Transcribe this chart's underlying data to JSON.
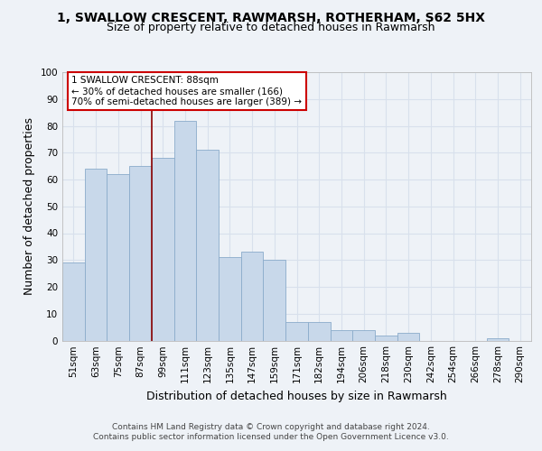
{
  "title": "1, SWALLOW CRESCENT, RAWMARSH, ROTHERHAM, S62 5HX",
  "subtitle": "Size of property relative to detached houses in Rawmarsh",
  "xlabel": "Distribution of detached houses by size in Rawmarsh",
  "ylabel": "Number of detached properties",
  "bar_color": "#c8d8ea",
  "bar_edge_color": "#8aabca",
  "categories": [
    "51sqm",
    "63sqm",
    "75sqm",
    "87sqm",
    "99sqm",
    "111sqm",
    "123sqm",
    "135sqm",
    "147sqm",
    "159sqm",
    "171sqm",
    "182sqm",
    "194sqm",
    "206sqm",
    "218sqm",
    "230sqm",
    "242sqm",
    "254sqm",
    "266sqm",
    "278sqm",
    "290sqm"
  ],
  "values": [
    29,
    64,
    62,
    65,
    68,
    82,
    71,
    31,
    33,
    30,
    7,
    7,
    4,
    4,
    2,
    3,
    0,
    0,
    0,
    1,
    0
  ],
  "ylim": [
    0,
    100
  ],
  "yticks": [
    0,
    10,
    20,
    30,
    40,
    50,
    60,
    70,
    80,
    90,
    100
  ],
  "property_label": "1 SWALLOW CRESCENT: 88sqm",
  "annotation_line1": "← 30% of detached houses are smaller (166)",
  "annotation_line2": "70% of semi-detached houses are larger (389) →",
  "marker_bar_index": 3.5,
  "footer1": "Contains HM Land Registry data © Crown copyright and database right 2024.",
  "footer2": "Contains public sector information licensed under the Open Government Licence v3.0.",
  "background_color": "#eef2f7",
  "grid_color": "#d8e0ec",
  "title_fontsize": 10,
  "subtitle_fontsize": 9,
  "axis_label_fontsize": 9,
  "tick_fontsize": 7.5,
  "footer_fontsize": 6.5
}
